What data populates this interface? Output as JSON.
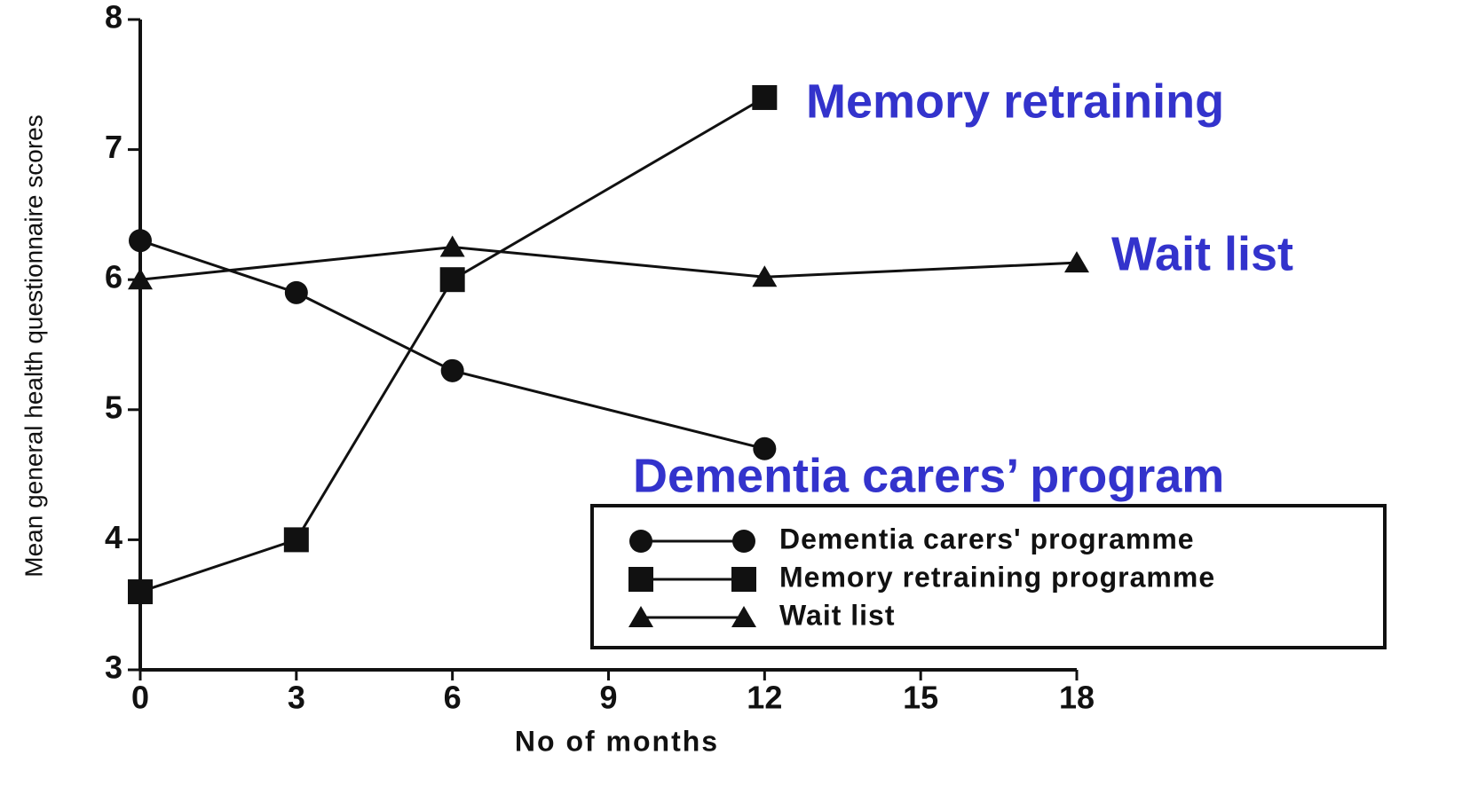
{
  "chart_data": {
    "type": "line",
    "y_label": "Mean general health questionnaire scores",
    "x_label": "No of months",
    "annotations": [
      "Memory retraining",
      "Wait list",
      "Dementia carers’ program"
    ],
    "annotation_color": "#3333cc",
    "xlim": [
      0,
      18
    ],
    "xticks": [
      0,
      3,
      6,
      9,
      12,
      15,
      18
    ],
    "ylim": [
      3,
      8
    ],
    "yticks": [
      3,
      4,
      5,
      6,
      7,
      8
    ],
    "series": [
      {
        "name": "Dementia carers' programme",
        "marker": "circle",
        "color": "#111111",
        "x": [
          0,
          3,
          6,
          12
        ],
        "values": [
          6.3,
          5.9,
          5.3,
          4.7
        ]
      },
      {
        "name": "Memory retraining programme",
        "marker": "square",
        "color": "#111111",
        "x": [
          0,
          3,
          6,
          12
        ],
        "values": [
          3.6,
          4.0,
          6.0,
          7.4
        ]
      },
      {
        "name": "Wait list",
        "marker": "triangle",
        "color": "#111111",
        "x": [
          0,
          6,
          12,
          18
        ],
        "values": [
          6.0,
          6.25,
          6.02,
          6.13
        ]
      }
    ]
  }
}
